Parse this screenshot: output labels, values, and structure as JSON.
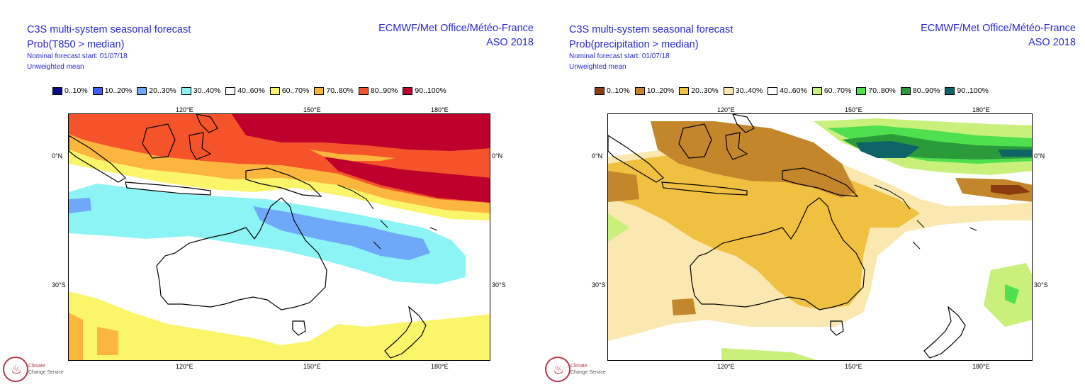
{
  "panels": [
    {
      "title": "C3S multi-system seasonal forecast",
      "subtitle": "Prob(T850 > median)",
      "forecast_start": "Nominal forecast start: 01/07/18",
      "weighting": "Unweighted mean",
      "source": "ECMWF/Met Office/Météo-France",
      "season": "ASO 2018",
      "legend": [
        {
          "label": "0..10%",
          "color": "#0a0a8c"
        },
        {
          "label": "10..20%",
          "color": "#3d5ef0"
        },
        {
          "label": "20..30%",
          "color": "#6fa8f8"
        },
        {
          "label": "30..40%",
          "color": "#8cf4f4"
        },
        {
          "label": "40..60%",
          "color": "#ffffff"
        },
        {
          "label": "60..70%",
          "color": "#fbf56a"
        },
        {
          "label": "70..80%",
          "color": "#fcb63d"
        },
        {
          "label": "80..90%",
          "color": "#f5542a"
        },
        {
          "label": "90..100%",
          "color": "#c0002c"
        }
      ],
      "lon_ticks": [
        "120°E",
        "150°E",
        "180°E"
      ],
      "lat_ticks": [
        "0°N",
        "30°S"
      ]
    },
    {
      "title": "C3S multi-system seasonal forecast",
      "subtitle": "Prob(precipitation > median)",
      "forecast_start": "Nominal forecast start: 01/07/18",
      "weighting": "Unweighted mean",
      "source": "ECMWF/Met Office/Météo-France",
      "season": "ASO 2018",
      "legend": [
        {
          "label": "0..10%",
          "color": "#8c3a10"
        },
        {
          "label": "10..20%",
          "color": "#c4862a"
        },
        {
          "label": "20..30%",
          "color": "#f0c040"
        },
        {
          "label": "30..40%",
          "color": "#fbe8b0"
        },
        {
          "label": "40..60%",
          "color": "#ffffff"
        },
        {
          "label": "60..70%",
          "color": "#c8f07a"
        },
        {
          "label": "70..80%",
          "color": "#4fe04f"
        },
        {
          "label": "80..90%",
          "color": "#2a9a3a"
        },
        {
          "label": "90..100%",
          "color": "#0e6466"
        }
      ],
      "lon_ticks": [
        "120°E",
        "150°E",
        "180°E"
      ],
      "lat_ticks": [
        "0°N",
        "30°S"
      ]
    }
  ],
  "logo": {
    "line1": "Climate",
    "line2": "Change Service"
  }
}
